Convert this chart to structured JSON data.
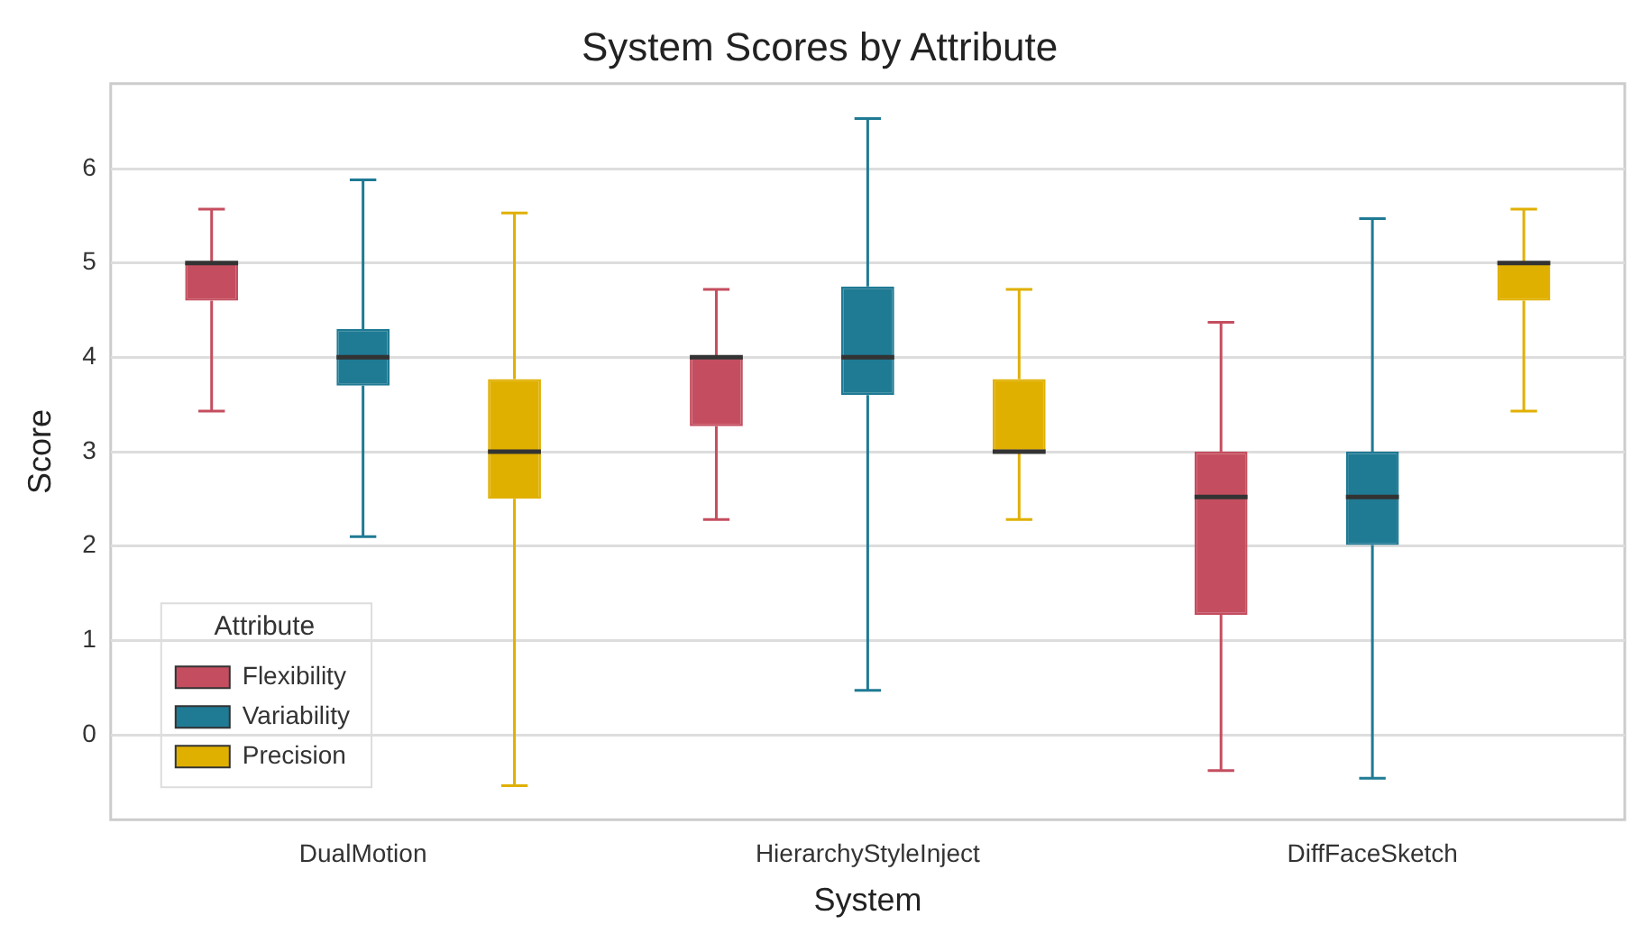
{
  "chart_data": {
    "type": "box",
    "title": "System Scores by Attribute",
    "xlabel": "System",
    "ylabel": "Score",
    "legend_title": "Attribute",
    "categories": [
      "DualMotion",
      "HierarchyStyleInject",
      "DiffFaceSketch"
    ],
    "series": [
      {
        "name": "Flexibility",
        "color": "#c44e5f",
        "boxes": [
          {
            "low": 3.43,
            "q1": 4.6,
            "median": 5.0,
            "q3": 5.0,
            "high": 5.57
          },
          {
            "low": 2.28,
            "q1": 3.27,
            "median": 4.0,
            "q3": 4.0,
            "high": 4.72
          },
          {
            "low": -0.38,
            "q1": 1.27,
            "median": 2.52,
            "q3": 3.0,
            "high": 4.37
          }
        ]
      },
      {
        "name": "Variability",
        "color": "#1f7a94",
        "boxes": [
          {
            "low": 2.1,
            "q1": 3.7,
            "median": 4.0,
            "q3": 4.3,
            "high": 5.88
          },
          {
            "low": 0.47,
            "q1": 3.6,
            "median": 4.0,
            "q3": 4.75,
            "high": 6.53
          },
          {
            "low": -0.46,
            "q1": 2.01,
            "median": 2.52,
            "q3": 3.0,
            "high": 5.47
          }
        ]
      },
      {
        "name": "Precision",
        "color": "#e0b000",
        "boxes": [
          {
            "low": -0.54,
            "q1": 2.5,
            "median": 3.0,
            "q3": 3.77,
            "high": 5.53
          },
          {
            "low": 2.28,
            "q1": 3.0,
            "median": 3.0,
            "q3": 3.77,
            "high": 4.72
          },
          {
            "low": 3.43,
            "q1": 4.6,
            "median": 5.0,
            "q3": 5.0,
            "high": 5.57
          }
        ]
      }
    ],
    "ylim": [
      -0.9,
      6.9
    ],
    "yticks": [
      0,
      1,
      2,
      3,
      4,
      5,
      6
    ],
    "grid": "y",
    "legend": "bottom left"
  }
}
